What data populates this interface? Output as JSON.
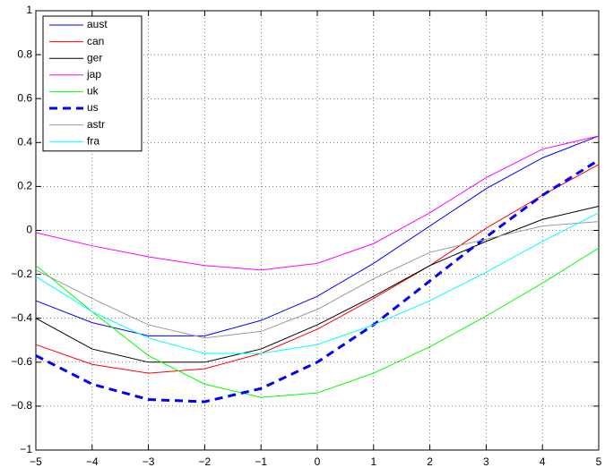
{
  "chart_data": {
    "type": "line",
    "x": [
      -5,
      -4,
      -3,
      -2,
      -1,
      0,
      1,
      2,
      3,
      4,
      5
    ],
    "series": [
      {
        "name": "aust",
        "color": "#0000ff",
        "values": [
          -0.32,
          -0.42,
          -0.48,
          -0.48,
          -0.41,
          -0.3,
          -0.15,
          0.02,
          0.19,
          0.33,
          0.43
        ]
      },
      {
        "name": "can",
        "color": "#ff0000",
        "values": [
          -0.52,
          -0.61,
          -0.65,
          -0.63,
          -0.56,
          -0.45,
          -0.31,
          -0.16,
          0.01,
          0.16,
          0.3
        ]
      },
      {
        "name": "ger",
        "color": "#000000",
        "values": [
          -0.4,
          -0.54,
          -0.6,
          -0.6,
          -0.54,
          -0.43,
          -0.3,
          -0.16,
          -0.05,
          0.05,
          0.11
        ]
      },
      {
        "name": "jap",
        "color": "#ff00ff",
        "values": [
          -0.01,
          -0.07,
          -0.12,
          -0.16,
          -0.18,
          -0.15,
          -0.06,
          0.08,
          0.24,
          0.37,
          0.43
        ]
      },
      {
        "name": "uk",
        "color": "#00ff00",
        "values": [
          -0.16,
          -0.37,
          -0.57,
          -0.7,
          -0.76,
          -0.74,
          -0.65,
          -0.53,
          -0.39,
          -0.24,
          -0.08
        ]
      },
      {
        "name": "us",
        "color": "#0000ff",
        "linestyle": "dashed",
        "values": [
          -0.57,
          -0.7,
          -0.77,
          -0.78,
          -0.72,
          -0.6,
          -0.43,
          -0.23,
          -0.03,
          0.16,
          0.32
        ]
      },
      {
        "name": "astr",
        "color": "#999999",
        "values": [
          -0.18,
          -0.31,
          -0.43,
          -0.49,
          -0.46,
          -0.36,
          -0.22,
          -0.1,
          -0.04,
          0.02,
          0.04
        ]
      },
      {
        "name": "fra",
        "color": "#00ffff",
        "values": [
          -0.21,
          -0.37,
          -0.49,
          -0.56,
          -0.56,
          -0.52,
          -0.43,
          -0.32,
          -0.19,
          -0.05,
          0.08
        ]
      }
    ],
    "xlim": [
      -5,
      5
    ],
    "xticks": [
      {
        "value": -5,
        "label": "−5"
      },
      {
        "value": -4,
        "label": "−4"
      },
      {
        "value": -3,
        "label": "−3"
      },
      {
        "value": -2,
        "label": "−2"
      },
      {
        "value": -1,
        "label": "−1"
      },
      0,
      1,
      2,
      3,
      4,
      5
    ],
    "ylim": [
      -1,
      1
    ],
    "yticks": [
      {
        "value": -1,
        "label": "−1"
      },
      {
        "value": -0.8,
        "label": "−0.8"
      },
      {
        "value": -0.6,
        "label": "−0.6"
      },
      {
        "value": -0.4,
        "label": "−0.4"
      },
      {
        "value": -0.2,
        "label": "−0.2"
      },
      0,
      0.2,
      0.4,
      0.6,
      0.8,
      1
    ],
    "grid": true,
    "legend": "upper left"
  }
}
